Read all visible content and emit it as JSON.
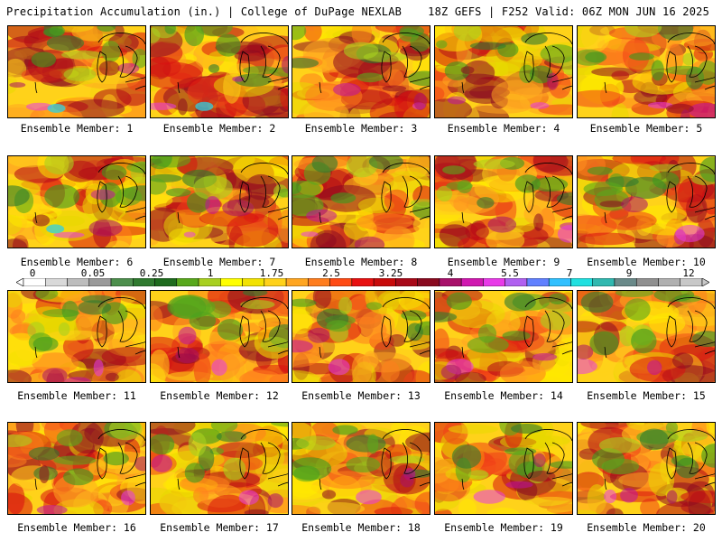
{
  "header": {
    "title_left": "Precipitation Accumulation (in.) | College of DuPage NEXLAB",
    "title_right": "18Z GEFS | F252 Valid: 06Z MON JUN 16 2025"
  },
  "colorbar": {
    "labels": [
      "0",
      "0.05",
      "0.25",
      "1",
      "1.75",
      "2.5",
      "3.25",
      "4",
      "5.5",
      "7",
      "9",
      "12"
    ],
    "colors": [
      "#ffffff",
      "#d9d9d9",
      "#bdbdbd",
      "#9a9a9a",
      "#4d8f4d",
      "#2f7a2f",
      "#1e6b1e",
      "#58a81c",
      "#a8d020",
      "#ffff00",
      "#f2e200",
      "#ffd21a",
      "#ffa520",
      "#ff7d1e",
      "#ff4a14",
      "#e81010",
      "#c80a0a",
      "#a80818",
      "#8a0a20",
      "#a8106a",
      "#d018b0",
      "#e83ae8",
      "#b060f0",
      "#6080ff",
      "#30c0ff",
      "#20e0e0",
      "#30b8b0",
      "#6a8a8a",
      "#909090",
      "#b0b0b0",
      "#c8c8c8"
    ]
  },
  "panels": [
    {
      "label": "Ensemble Member: 1"
    },
    {
      "label": "Ensemble Member: 2"
    },
    {
      "label": "Ensemble Member: 3"
    },
    {
      "label": "Ensemble Member: 4"
    },
    {
      "label": "Ensemble Member: 5"
    },
    {
      "label": "Ensemble Member: 6"
    },
    {
      "label": "Ensemble Member: 7"
    },
    {
      "label": "Ensemble Member: 8"
    },
    {
      "label": "Ensemble Member: 9"
    },
    {
      "label": "Ensemble Member: 10"
    },
    {
      "label": "Ensemble Member: 11"
    },
    {
      "label": "Ensemble Member: 12"
    },
    {
      "label": "Ensemble Member: 13"
    },
    {
      "label": "Ensemble Member: 14"
    },
    {
      "label": "Ensemble Member: 15"
    },
    {
      "label": "Ensemble Member: 16"
    },
    {
      "label": "Ensemble Member: 17"
    },
    {
      "label": "Ensemble Member: 18"
    },
    {
      "label": "Ensemble Member: 19"
    },
    {
      "label": "Ensemble Member: 20"
    }
  ]
}
